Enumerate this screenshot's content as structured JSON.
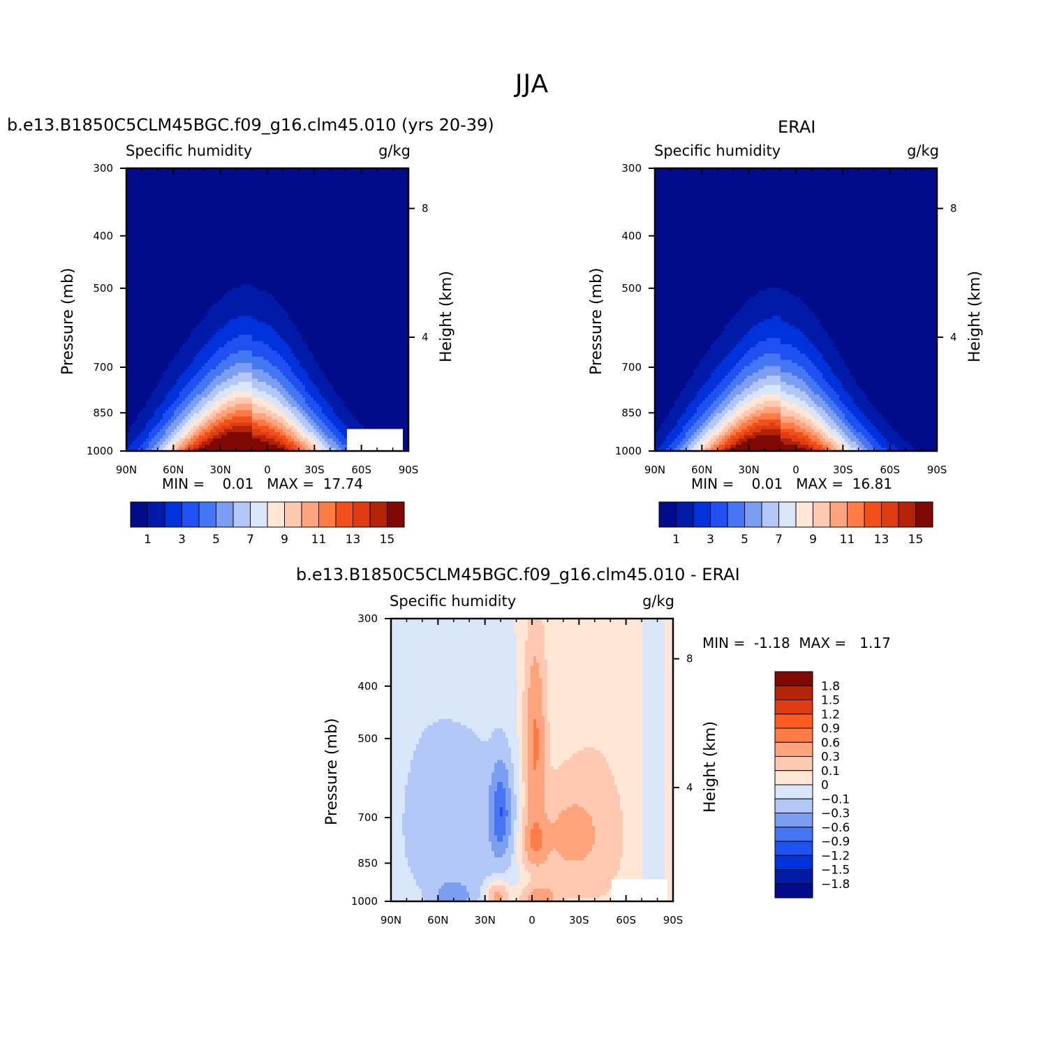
{
  "figure": {
    "title": "JJA"
  },
  "chart_data": [
    {
      "type": "heatmap",
      "panel_title": "b.e13.B1850C5CLM45BGC.f09_g16.clm45.010 (yrs 20-39)",
      "left_string": "Specific humidity",
      "right_string": "g/kg",
      "ylabel": "Pressure (mb)",
      "y2label": "Height (km)",
      "x_ticks": [
        "90N",
        "60N",
        "30N",
        "0",
        "30S",
        "60S",
        "90S"
      ],
      "y_ticks": [
        "300",
        "400",
        "500",
        "700",
        "850",
        "1000"
      ],
      "y2_ticks": [
        "8",
        "4"
      ],
      "ylim": [
        1000,
        300
      ],
      "stats": {
        "min_label": "MIN =",
        "min": "0.01",
        "max_label": "MAX =",
        "max": "17.74"
      },
      "colorbar": {
        "orientation": "horizontal",
        "labels": [
          "1",
          "3",
          "5",
          "7",
          "9",
          "11",
          "13",
          "15"
        ],
        "colors": [
          "#000c8a",
          "#001ba8",
          "#0032dc",
          "#1f50f2",
          "#4577f2",
          "#7b9ef0",
          "#b3c7f7",
          "#d9e6fa",
          "#ffe6d5",
          "#ffc8b0",
          "#ffa37d",
          "#ff7b45",
          "#f2501a",
          "#e03c12",
          "#b32407",
          "#7f0903"
        ]
      },
      "approximate_peak_profile": {
        "latitude_of_max": "10N",
        "near_surface_max": 17.74,
        "mid_level_500mb_at_0": 4
      }
    },
    {
      "type": "heatmap",
      "panel_title": "ERAI",
      "left_string": "Specific humidity",
      "right_string": "g/kg",
      "ylabel": "Pressure (mb)",
      "y2label": "Height (km)",
      "x_ticks": [
        "90N",
        "60N",
        "30N",
        "0",
        "30S",
        "60S",
        "90S"
      ],
      "y_ticks": [
        "300",
        "400",
        "500",
        "700",
        "850",
        "1000"
      ],
      "y2_ticks": [
        "8",
        "4"
      ],
      "ylim": [
        1000,
        300
      ],
      "stats": {
        "min_label": "MIN =",
        "min": "0.01",
        "max_label": "MAX =",
        "max": "16.81"
      },
      "colorbar": {
        "orientation": "horizontal",
        "labels": [
          "1",
          "3",
          "5",
          "7",
          "9",
          "11",
          "13",
          "15"
        ],
        "colors": [
          "#000c8a",
          "#001ba8",
          "#0032dc",
          "#1f50f2",
          "#4577f2",
          "#7b9ef0",
          "#b3c7f7",
          "#d9e6fa",
          "#ffe6d5",
          "#ffc8b0",
          "#ffa37d",
          "#ff7b45",
          "#f2501a",
          "#e03c12",
          "#b32407",
          "#7f0903"
        ]
      },
      "approximate_peak_profile": {
        "latitude_of_max": "10N",
        "near_surface_max": 16.81,
        "mid_level_500mb_at_0": 4
      }
    },
    {
      "type": "heatmap",
      "panel_title": "b.e13.B1850C5CLM45BGC.f09_g16.clm45.010 - ERAI",
      "left_string": "Specific humidity",
      "right_string": "g/kg",
      "ylabel": "Pressure (mb)",
      "y2label": "Height (km)",
      "x_ticks": [
        "90N",
        "60N",
        "30N",
        "0",
        "30S",
        "60S",
        "90S"
      ],
      "y_ticks": [
        "300",
        "400",
        "500",
        "700",
        "850",
        "1000"
      ],
      "y2_ticks": [
        "8",
        "4"
      ],
      "ylim": [
        1000,
        300
      ],
      "stats": {
        "min_label": "MIN =",
        "min": "-1.18",
        "max_label": "MAX =",
        "max": "1.17"
      },
      "colorbar": {
        "orientation": "vertical",
        "labels": [
          "1.8",
          "1.5",
          "1.2",
          "0.9",
          "0.6",
          "0.3",
          "0.1",
          "0",
          "-0.1",
          "-0.3",
          "-0.6",
          "-0.9",
          "-1.2",
          "-1.5",
          "-1.8"
        ],
        "colors": [
          "#7f0903",
          "#b32407",
          "#e03c12",
          "#ff5a20",
          "#ff7b45",
          "#ffa37d",
          "#ffc8b0",
          "#ffe6d5",
          "#d9e6fa",
          "#b3c7f7",
          "#7b9ef0",
          "#4577f2",
          "#1f50f2",
          "#0032dc",
          "#001ba8",
          "#000c8a"
        ]
      }
    }
  ]
}
